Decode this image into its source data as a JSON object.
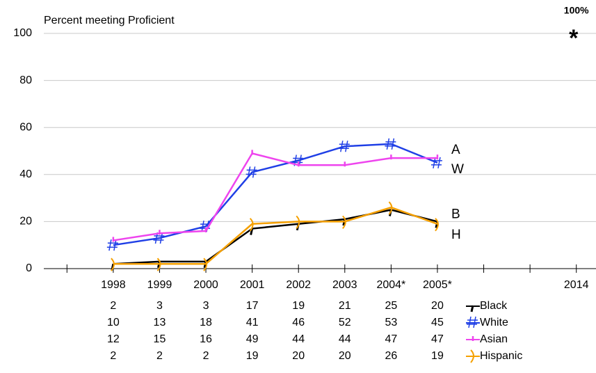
{
  "chart_data": {
    "type": "line",
    "title": "Percent meeting Proficient",
    "categories": [
      null,
      "1998",
      "1999",
      "2000",
      "2001",
      "2002",
      "2003",
      "2004*",
      "2005*",
      null,
      null,
      "2014"
    ],
    "series": [
      {
        "name": "Black",
        "color": "#000000",
        "end_label": "B",
        "values": [
          null,
          2,
          3,
          3,
          17,
          19,
          21,
          25,
          20,
          null,
          null,
          null
        ]
      },
      {
        "name": "White",
        "color": "#1f3fe6",
        "end_label": "W",
        "values": [
          null,
          10,
          13,
          18,
          41,
          46,
          52,
          53,
          45,
          null,
          null,
          null
        ]
      },
      {
        "name": "Asian",
        "color": "#ee44ee",
        "end_label": "A",
        "values": [
          null,
          12,
          15,
          16,
          49,
          44,
          44,
          47,
          47,
          null,
          null,
          null
        ]
      },
      {
        "name": "Hispanic",
        "color": "#f5a000",
        "end_label": "H",
        "values": [
          null,
          2,
          2,
          2,
          19,
          20,
          20,
          26,
          19,
          null,
          null,
          null
        ]
      }
    ],
    "target": {
      "label": "100%",
      "marker": "*",
      "value": 100
    },
    "ylim": [
      0,
      100
    ],
    "yticks": [
      0,
      20,
      40,
      60,
      80,
      100
    ],
    "grid": true
  }
}
